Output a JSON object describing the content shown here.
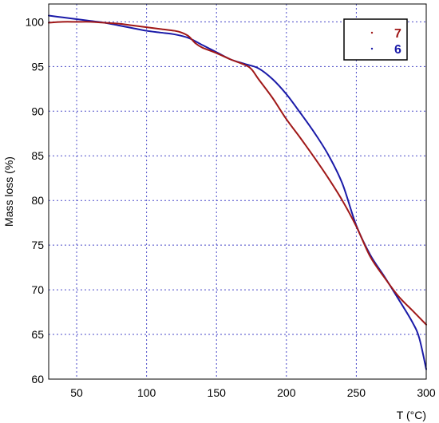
{
  "chart_data": {
    "type": "line",
    "title": "",
    "xlabel": "T (°C)",
    "ylabel": "Mass loss (%)",
    "xlim": [
      30,
      300
    ],
    "ylim": [
      60,
      102
    ],
    "x_ticks": [
      50,
      100,
      150,
      200,
      250,
      300
    ],
    "y_ticks": [
      60,
      65,
      70,
      75,
      80,
      85,
      90,
      95,
      100
    ],
    "grid": true,
    "legend_position": "top-right",
    "series": [
      {
        "name": "7",
        "color": "#a01818",
        "x": [
          30,
          40,
          50,
          60,
          70,
          80,
          90,
          100,
          110,
          120,
          125,
          130,
          135,
          140,
          150,
          160,
          170,
          175,
          180,
          190,
          200,
          210,
          220,
          230,
          240,
          250,
          260,
          270,
          280,
          290,
          300
        ],
        "y": [
          99.9,
          100.0,
          100.0,
          100.0,
          99.9,
          99.8,
          99.6,
          99.4,
          99.2,
          99.0,
          98.8,
          98.4,
          97.6,
          97.1,
          96.5,
          95.8,
          95.2,
          94.7,
          93.6,
          91.5,
          89.1,
          87.0,
          84.8,
          82.5,
          80.0,
          77.1,
          73.7,
          71.4,
          69.3,
          67.7,
          66.1
        ]
      },
      {
        "name": "6",
        "color": "#1a1aa8",
        "x": [
          30,
          40,
          50,
          60,
          70,
          80,
          90,
          100,
          110,
          120,
          130,
          140,
          150,
          160,
          170,
          180,
          190,
          200,
          210,
          220,
          230,
          240,
          250,
          260,
          270,
          280,
          290,
          295,
          300
        ],
        "y": [
          100.7,
          100.5,
          100.3,
          100.1,
          99.9,
          99.6,
          99.3,
          99.0,
          98.8,
          98.6,
          98.2,
          97.4,
          96.6,
          95.8,
          95.3,
          94.8,
          93.6,
          91.9,
          89.8,
          87.6,
          85.1,
          81.9,
          77.2,
          73.9,
          71.5,
          69.0,
          66.4,
          64.6,
          61.1
        ]
      }
    ]
  }
}
